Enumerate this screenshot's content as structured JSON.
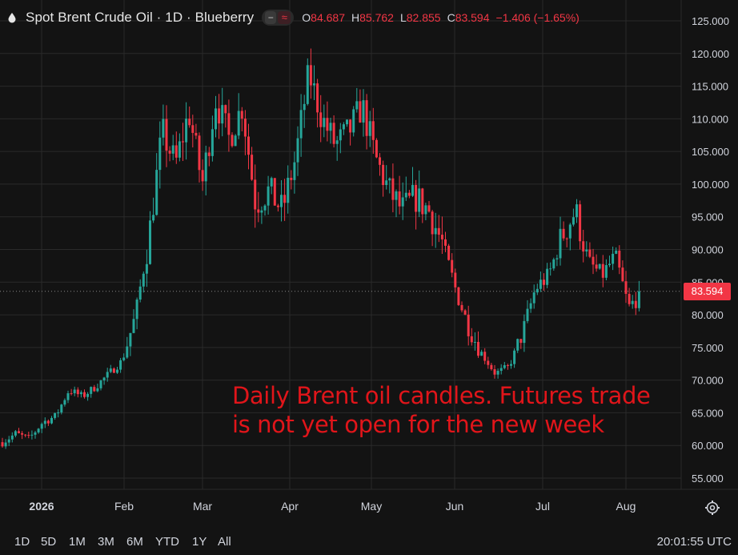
{
  "header": {
    "title": "Spot Brent Crude Oil · 1D · Blueberry",
    "ohlc": {
      "o_label": "O",
      "o": "84.687",
      "h_label": "H",
      "h": "85.762",
      "l_label": "L",
      "l": "82.855",
      "c_label": "C",
      "c": "83.594",
      "change": "−1.406 (−1.65%)"
    }
  },
  "annotation": {
    "line1": "Daily Brent oil candles. Futures trade",
    "line2": "is not yet open for the new week"
  },
  "last_price_label": "83.594",
  "timeframes": [
    "1D",
    "5D",
    "1M",
    "3M",
    "6M",
    "YTD",
    "1Y",
    "All"
  ],
  "clock": "20:01:55 UTC",
  "icons": {
    "header": "drop-icon",
    "settings": "gear-icon"
  },
  "colors": {
    "up": "#26a69a",
    "down": "#f23645",
    "background": "#131313",
    "grid": "#2a2a2a",
    "annotation": "#e1151a"
  },
  "chart_data": {
    "type": "candlestick",
    "title": "Spot Brent Crude Oil · 1D · Blueberry",
    "ylim": [
      52,
      126
    ],
    "y_ticks": [
      "55.000",
      "60.000",
      "65.000",
      "70.000",
      "75.000",
      "80.000",
      "85.000",
      "90.000",
      "95.000",
      "100.000",
      "105.000",
      "110.000",
      "115.000",
      "120.000",
      "125.000"
    ],
    "x_ticks": [
      "2026",
      "Feb",
      "Mar",
      "Apr",
      "May",
      "Jun",
      "Jul",
      "Aug"
    ],
    "grid": true,
    "last_price": 83.594,
    "close_path": [
      {
        "label": "Dec 29",
        "close": 60.5
      },
      {
        "label": "Jan 2",
        "close": 61.8
      },
      {
        "label": "Jan 9",
        "close": 61.0
      },
      {
        "label": "Jan 16",
        "close": 63.5
      },
      {
        "label": "Jan 23",
        "close": 64.5
      },
      {
        "label": "Jan 30",
        "close": 68.5
      },
      {
        "label": "Feb 6",
        "close": 67.5
      },
      {
        "label": "Feb 13",
        "close": 69.0
      },
      {
        "label": "Feb 20",
        "close": 71.0
      },
      {
        "label": "Feb 27",
        "close": 73.0
      },
      {
        "label": "Mar 2",
        "close": 80.0
      },
      {
        "label": "Mar 6",
        "close": 92.0
      },
      {
        "label": "Mar 9",
        "close": 108.0
      },
      {
        "label": "Mar 13",
        "close": 103.0
      },
      {
        "label": "Mar 18",
        "close": 111.0
      },
      {
        "label": "Mar 23",
        "close": 100.0
      },
      {
        "label": "Mar 26",
        "close": 113.0
      },
      {
        "label": "Mar 31",
        "close": 107.0
      },
      {
        "label": "Apr 3",
        "close": 112.0
      },
      {
        "label": "Apr 8",
        "close": 97.0
      },
      {
        "label": "Apr 14",
        "close": 99.0
      },
      {
        "label": "Apr 20",
        "close": 96.0
      },
      {
        "label": "Apr 24",
        "close": 104.0
      },
      {
        "label": "Apr 30",
        "close": 117.0
      },
      {
        "label": "May 5",
        "close": 110.0
      },
      {
        "label": "May 8",
        "close": 106.0
      },
      {
        "label": "May 13",
        "close": 108.0
      },
      {
        "label": "May 18",
        "close": 112.0
      },
      {
        "label": "May 22",
        "close": 104.0
      },
      {
        "label": "May 26",
        "close": 99.0
      },
      {
        "label": "May 29",
        "close": 96.0
      },
      {
        "label": "Jun 3",
        "close": 98.0
      },
      {
        "label": "Jun 8",
        "close": 96.0
      },
      {
        "label": "Jun 12",
        "close": 91.0
      },
      {
        "label": "Jun 16",
        "close": 84.0
      },
      {
        "label": "Jun 22",
        "close": 78.0
      },
      {
        "label": "Jun 26",
        "close": 74.0
      },
      {
        "label": "Jul 2",
        "close": 71.0
      },
      {
        "label": "Jul 6",
        "close": 72.0
      },
      {
        "label": "Jul 10",
        "close": 77.0
      },
      {
        "label": "Jul 14",
        "close": 84.0
      },
      {
        "label": "Jul 17",
        "close": 86.0
      },
      {
        "label": "Jul 21",
        "close": 92.0
      },
      {
        "label": "Jul 24",
        "close": 96.0
      },
      {
        "label": "Jul 27",
        "close": 88.0
      },
      {
        "label": "Jul 30",
        "close": 86.0
      },
      {
        "label": "Aug 3",
        "close": 89.0
      },
      {
        "label": "Aug 5",
        "close": 81.0
      },
      {
        "label": "Aug 7",
        "close": 83.594
      }
    ]
  }
}
